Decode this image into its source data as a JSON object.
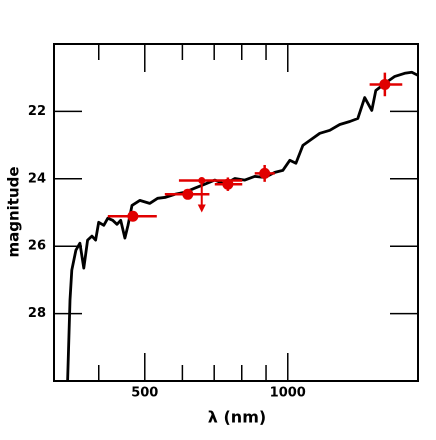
{
  "chart_data": {
    "type": "spectrum",
    "xlabel": "λ (nm)",
    "ylabel": "magnitude",
    "xscale": "log",
    "xlim": [
      322,
      1880
    ],
    "ylim": [
      30,
      20
    ],
    "xticks": [
      500,
      1000
    ],
    "xminor": [
      400,
      600,
      700,
      800,
      900
    ],
    "yticks": [
      22,
      24,
      26,
      28
    ],
    "spectrum": {
      "color": "#000000",
      "x": [
        344,
        348,
        351,
        358,
        365,
        372,
        379,
        387,
        394,
        400,
        410,
        418,
        428,
        437,
        445,
        454,
        461,
        470,
        488,
        512,
        532,
        553,
        579,
        607,
        637,
        669,
        702,
        737,
        774,
        812,
        852,
        894,
        939,
        976,
        1010,
        1040,
        1076,
        1113,
        1168,
        1226,
        1287,
        1351,
        1404,
        1452,
        1503,
        1532,
        1601,
        1680,
        1763,
        1824,
        1878
      ],
      "values": [
        30.0,
        27.6,
        26.71,
        26.12,
        25.91,
        26.65,
        25.82,
        25.7,
        25.82,
        25.29,
        25.38,
        25.17,
        25.23,
        25.35,
        25.23,
        25.76,
        25.38,
        24.79,
        24.64,
        24.73,
        24.58,
        24.55,
        24.46,
        24.4,
        24.28,
        24.16,
        24.04,
        24.16,
        23.99,
        24.04,
        23.93,
        23.96,
        23.81,
        23.75,
        23.45,
        23.54,
        23.01,
        22.86,
        22.65,
        22.56,
        22.39,
        22.3,
        22.21,
        21.59,
        21.97,
        21.38,
        21.17,
        20.96,
        20.87,
        20.84,
        20.93
      ]
    },
    "photometry": {
      "color": "#e00000",
      "x": [
        472,
        616,
        748,
        894,
        1601
      ],
      "values": [
        25.11,
        24.46,
        24.16,
        23.84,
        21.2
      ],
      "xmin": [
        418,
        551,
        702,
        852,
        1487
      ],
      "xmax": [
        530,
        684,
        802,
        939,
        1742
      ],
      "yerr": [
        0.1,
        0.1,
        0.2,
        0.25,
        0.35
      ]
    },
    "upper_limit": {
      "color": "#e00000",
      "x": [
        659
      ],
      "values": [
        24.05
      ],
      "xmin": [
        590
      ],
      "xmax": [
        802
      ]
    }
  }
}
